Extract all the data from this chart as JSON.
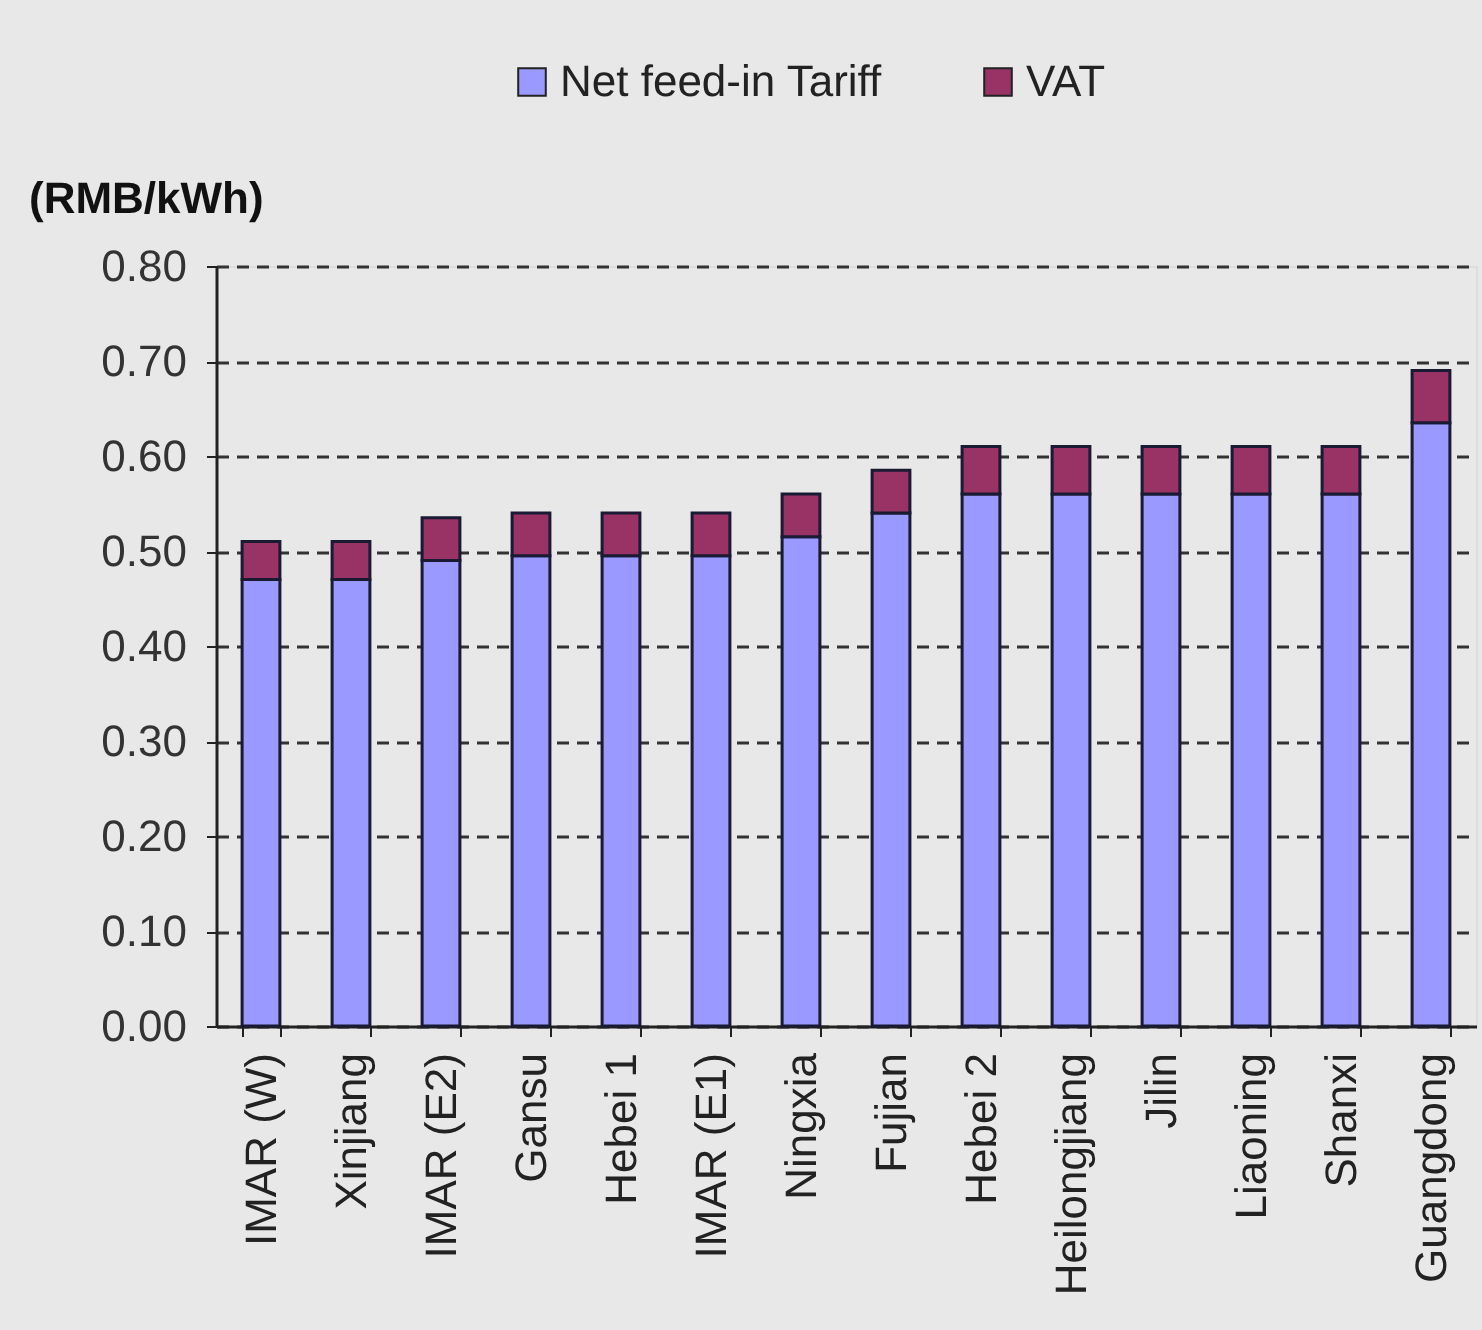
{
  "chart_data": {
    "type": "bar",
    "stacked": true,
    "ylabel": "(RMB/kWh)",
    "categories": [
      "IMAR (W)",
      "Xinjiang",
      "IMAR (E2)",
      "Gansu",
      "Hebei 1",
      "IMAR (E1)",
      "Ningxia",
      "Fujian",
      "Hebei 2",
      "Heilongjiang",
      "Jilin",
      "Liaoning",
      "Shanxi",
      "Guangdong"
    ],
    "series": [
      {
        "name": "Net feed-in Tariff",
        "color": "#9999ff",
        "values": [
          0.47,
          0.47,
          0.49,
          0.495,
          0.495,
          0.495,
          0.515,
          0.54,
          0.56,
          0.56,
          0.56,
          0.56,
          0.56,
          0.635
        ]
      },
      {
        "name": "VAT",
        "color": "#993366",
        "values": [
          0.04,
          0.04,
          0.045,
          0.045,
          0.045,
          0.045,
          0.045,
          0.045,
          0.05,
          0.05,
          0.05,
          0.05,
          0.05,
          0.055
        ]
      }
    ],
    "ylim": [
      0,
      0.8
    ],
    "yticks": [
      {
        "value": 0,
        "label": "0.00"
      },
      {
        "value": 0.1,
        "label": "0.10"
      },
      {
        "value": 0.2,
        "label": "0.20"
      },
      {
        "value": 0.3,
        "label": "0.30"
      },
      {
        "value": 0.4,
        "label": "0.40"
      },
      {
        "value": 0.5,
        "label": "0.50"
      },
      {
        "value": 0.6,
        "label": "0.60"
      },
      {
        "value": 0.7,
        "label": "0.70"
      },
      {
        "value": 0.8,
        "label": "0.80"
      }
    ],
    "grid": "y",
    "legend": "top"
  }
}
